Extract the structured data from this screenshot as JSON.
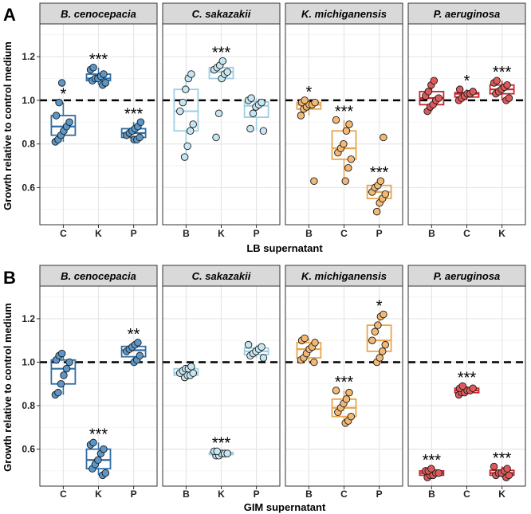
{
  "ylabel": "Growth relative to control medium",
  "reference_line": 1.0,
  "species": [
    {
      "name": "B. cenocepacia",
      "color": "#2f6da3",
      "fill": "#5b97c9"
    },
    {
      "name": "C. sakazakii",
      "color": "#9ecfe3",
      "fill": "#c6e6f2"
    },
    {
      "name": "K. michiganensis",
      "color": "#e8a54c",
      "fill": "#f2b974"
    },
    {
      "name": "P. aeruginosa",
      "color": "#c4262e",
      "fill": "#dd5a5a"
    }
  ],
  "chart_data": [
    {
      "type": "boxplot",
      "panel": "A",
      "xlabel": "LB supernatant",
      "ylabel": "Growth relative to control medium",
      "ylim": [
        0.43,
        1.35
      ],
      "yticks": [
        0.6,
        0.8,
        1.0,
        1.2
      ],
      "facets": [
        {
          "title": "B. cenocepacia",
          "groups": [
            {
              "label": "C",
              "sig": "*",
              "points": [
                0.81,
                0.82,
                0.84,
                0.86,
                0.88,
                0.9,
                0.93,
                0.99,
                1.08
              ]
            },
            {
              "label": "K",
              "sig": "***",
              "points": [
                1.07,
                1.08,
                1.09,
                1.1,
                1.1,
                1.11,
                1.12,
                1.14,
                1.15
              ]
            },
            {
              "label": "P",
              "sig": "***",
              "points": [
                0.82,
                0.82,
                0.83,
                0.84,
                0.85,
                0.86,
                0.87,
                0.88,
                0.9
              ]
            }
          ]
        },
        {
          "title": "C. sakazakii",
          "groups": [
            {
              "label": "B",
              "sig": "",
              "points": [
                0.74,
                0.79,
                0.86,
                0.89,
                0.95,
                0.99,
                1.05,
                1.1,
                1.12
              ]
            },
            {
              "label": "K",
              "sig": "***",
              "points": [
                0.83,
                0.94,
                1.1,
                1.12,
                1.13,
                1.14,
                1.15,
                1.16,
                1.18
              ]
            },
            {
              "label": "P",
              "sig": "",
              "points": [
                0.86,
                0.87,
                0.94,
                0.97,
                0.98,
                0.99,
                1.0,
                1.01
              ]
            }
          ]
        },
        {
          "title": "K. michiganensis",
          "groups": [
            {
              "label": "B",
              "sig": "*",
              "points": [
                0.63,
                0.93,
                0.96,
                0.97,
                0.98,
                0.98,
                0.99,
                0.99,
                1.0
              ]
            },
            {
              "label": "C",
              "sig": "***",
              "points": [
                0.63,
                0.69,
                0.73,
                0.76,
                0.78,
                0.8,
                0.86,
                0.89,
                0.91
              ]
            },
            {
              "label": "P",
              "sig": "***",
              "points": [
                0.49,
                0.53,
                0.55,
                0.57,
                0.58,
                0.6,
                0.61,
                0.63,
                0.83
              ]
            }
          ]
        },
        {
          "title": "P. aeruginosa",
          "groups": [
            {
              "label": "B",
              "sig": "",
              "points": [
                0.95,
                0.97,
                0.98,
                1.0,
                1.01,
                1.02,
                1.04,
                1.07,
                1.09
              ]
            },
            {
              "label": "C",
              "sig": "*",
              "points": [
                1.0,
                1.01,
                1.02,
                1.03,
                1.03,
                1.04,
                1.05
              ]
            },
            {
              "label": "K",
              "sig": "***",
              "points": [
                1.0,
                1.01,
                1.03,
                1.04,
                1.05,
                1.06,
                1.07,
                1.08,
                1.09
              ]
            }
          ]
        }
      ]
    },
    {
      "type": "boxplot",
      "panel": "B",
      "xlabel": "GIM supernatant",
      "ylabel": "Growth relative to control medium",
      "ylim": [
        0.43,
        1.35
      ],
      "yticks": [
        0.6,
        0.8,
        1.0,
        1.2
      ],
      "facets": [
        {
          "title": "B. cenocepacia",
          "groups": [
            {
              "label": "C",
              "sig": "",
              "points": [
                0.85,
                0.86,
                0.9,
                0.94,
                0.97,
                1.0,
                1.01,
                1.03,
                1.04
              ]
            },
            {
              "label": "K",
              "sig": "***",
              "points": [
                0.48,
                0.49,
                0.51,
                0.53,
                0.55,
                0.58,
                0.6,
                0.62,
                0.63
              ]
            },
            {
              "label": "P",
              "sig": "**",
              "points": [
                1.0,
                1.01,
                1.03,
                1.05,
                1.06,
                1.07,
                1.08,
                1.09
              ]
            }
          ]
        },
        {
          "title": "C. sakazakii",
          "groups": [
            {
              "label": "B",
              "sig": "",
              "points": [
                0.93,
                0.94,
                0.94,
                0.95,
                0.95,
                0.96,
                0.97,
                0.97,
                0.98
              ]
            },
            {
              "label": "K",
              "sig": "***",
              "points": [
                0.57,
                0.57,
                0.58,
                0.58,
                0.58,
                0.59,
                0.59
              ]
            },
            {
              "label": "P",
              "sig": "",
              "points": [
                1.02,
                1.03,
                1.04,
                1.05,
                1.06,
                1.07,
                1.08
              ]
            }
          ]
        },
        {
          "title": "K. michiganensis",
          "groups": [
            {
              "label": "B",
              "sig": "",
              "points": [
                1.0,
                1.01,
                1.02,
                1.04,
                1.06,
                1.07,
                1.09,
                1.1,
                1.11
              ]
            },
            {
              "label": "C",
              "sig": "***",
              "points": [
                0.72,
                0.73,
                0.75,
                0.77,
                0.79,
                0.81,
                0.83,
                0.86,
                0.87
              ]
            },
            {
              "label": "P",
              "sig": "*",
              "points": [
                1.0,
                1.02,
                1.05,
                1.08,
                1.1,
                1.14,
                1.17,
                1.21,
                1.22
              ]
            }
          ]
        },
        {
          "title": "P. aeruginosa",
          "groups": [
            {
              "label": "B",
              "sig": "***",
              "points": [
                0.47,
                0.48,
                0.48,
                0.49,
                0.49,
                0.5,
                0.5,
                0.51
              ]
            },
            {
              "label": "C",
              "sig": "***",
              "points": [
                0.85,
                0.86,
                0.86,
                0.87,
                0.87,
                0.88,
                0.88,
                0.89
              ]
            },
            {
              "label": "K",
              "sig": "***",
              "points": [
                0.47,
                0.48,
                0.48,
                0.49,
                0.49,
                0.5,
                0.51,
                0.52
              ]
            }
          ]
        }
      ]
    }
  ]
}
